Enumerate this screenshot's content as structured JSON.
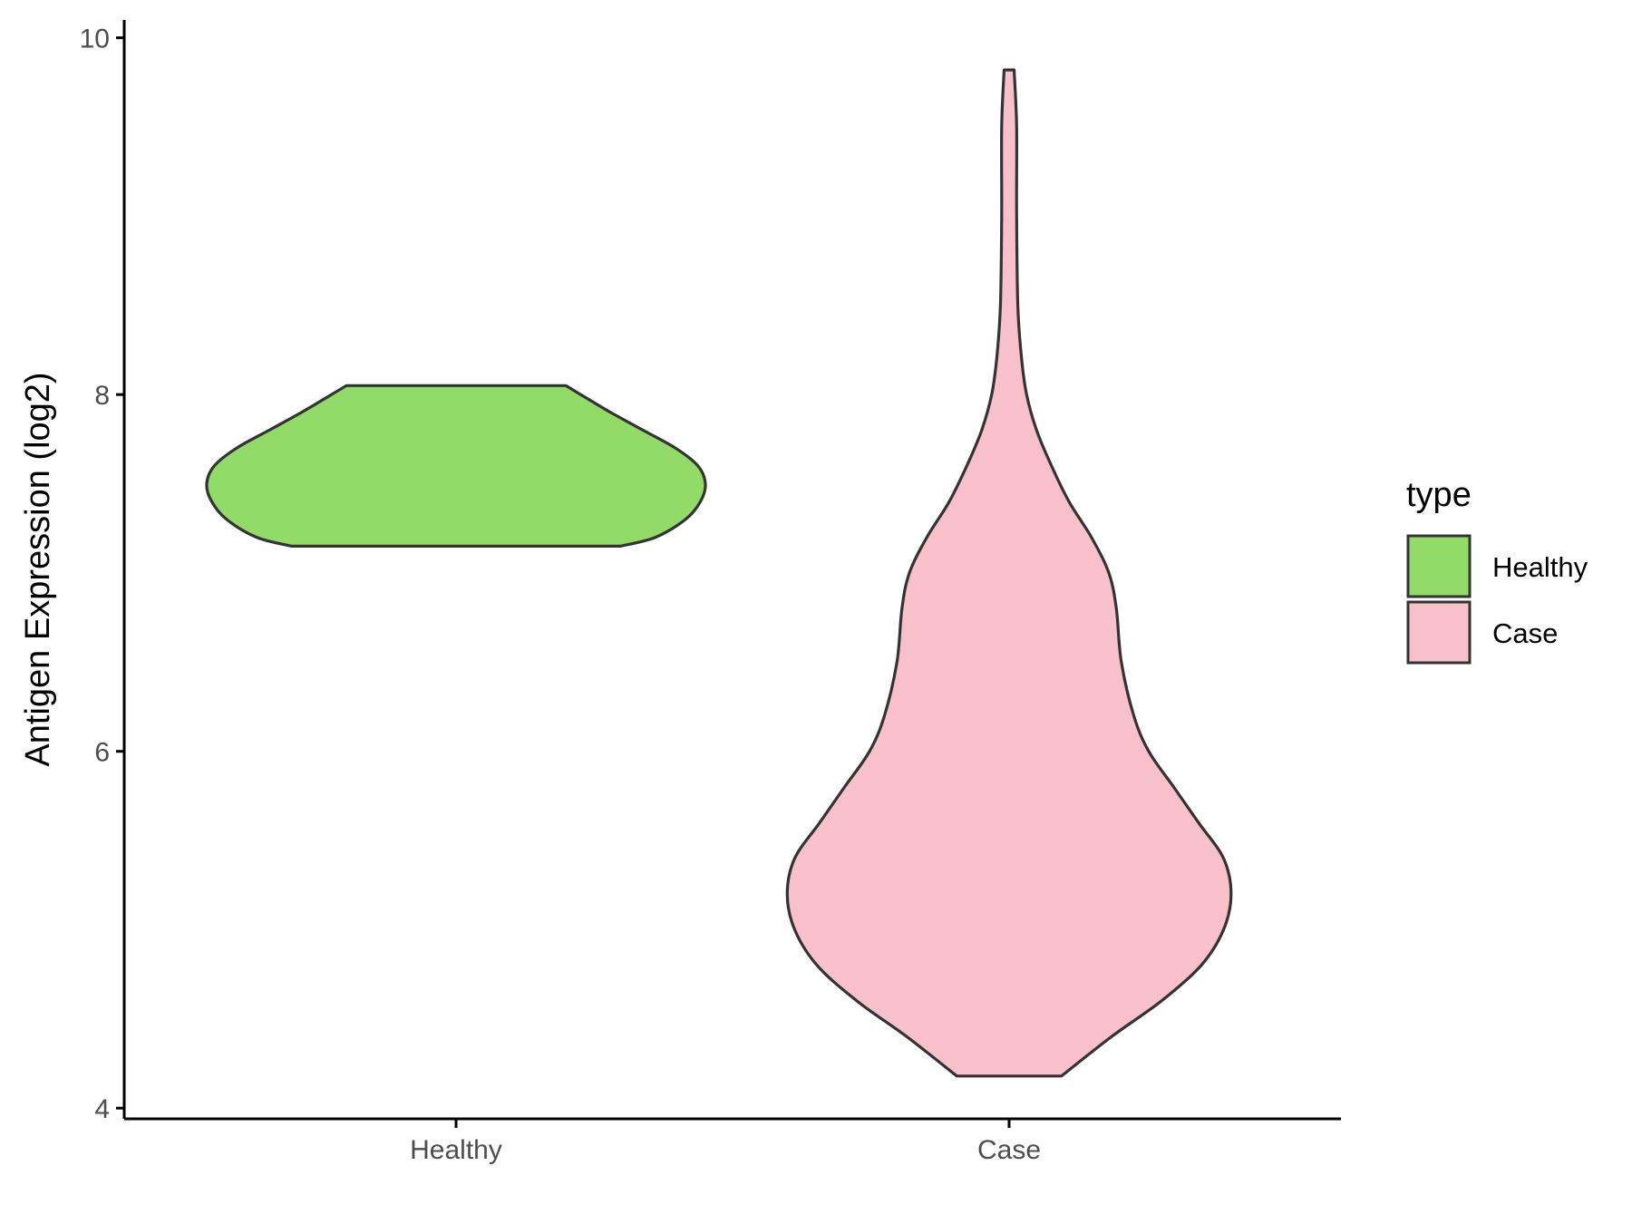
{
  "chart_data": {
    "type": "violin",
    "title": "",
    "xlabel": "",
    "ylabel": "Antigen Expression (log2)",
    "ylim": [
      3.94,
      10.1
    ],
    "yticks": [
      4,
      6,
      8,
      10
    ],
    "categories": [
      "Healthy",
      "Case"
    ],
    "legend": {
      "title": "type",
      "position": "right",
      "entries": [
        {
          "label": "Healthy",
          "color": "#93DB69"
        },
        {
          "label": "Case",
          "color": "#F7C0CB"
        }
      ]
    },
    "series": [
      {
        "name": "Healthy",
        "color": "#93DB69",
        "y_min": 7.15,
        "y_max": 8.05,
        "density_profile": [
          [
            7.15,
            0.66
          ],
          [
            7.2,
            0.8
          ],
          [
            7.3,
            0.92
          ],
          [
            7.4,
            0.98
          ],
          [
            7.5,
            1.0
          ],
          [
            7.6,
            0.97
          ],
          [
            7.7,
            0.88
          ],
          [
            7.8,
            0.75
          ],
          [
            7.9,
            0.62
          ],
          [
            8.0,
            0.5
          ],
          [
            8.05,
            0.44
          ]
        ]
      },
      {
        "name": "Case",
        "color": "#F7C0CB",
        "y_min": 4.18,
        "y_max": 9.82,
        "density_profile": [
          [
            4.18,
            0.21
          ],
          [
            4.4,
            0.41
          ],
          [
            4.6,
            0.61
          ],
          [
            4.8,
            0.77
          ],
          [
            5.0,
            0.86
          ],
          [
            5.2,
            0.89
          ],
          [
            5.4,
            0.86
          ],
          [
            5.6,
            0.76
          ],
          [
            5.8,
            0.66
          ],
          [
            6.0,
            0.56
          ],
          [
            6.2,
            0.5
          ],
          [
            6.5,
            0.45
          ],
          [
            6.8,
            0.43
          ],
          [
            7.0,
            0.4
          ],
          [
            7.2,
            0.33
          ],
          [
            7.4,
            0.24
          ],
          [
            7.6,
            0.17
          ],
          [
            7.8,
            0.11
          ],
          [
            8.0,
            0.07
          ],
          [
            8.2,
            0.05
          ],
          [
            8.5,
            0.035
          ],
          [
            9.0,
            0.03
          ],
          [
            9.5,
            0.03
          ],
          [
            9.82,
            0.02
          ]
        ]
      }
    ]
  }
}
